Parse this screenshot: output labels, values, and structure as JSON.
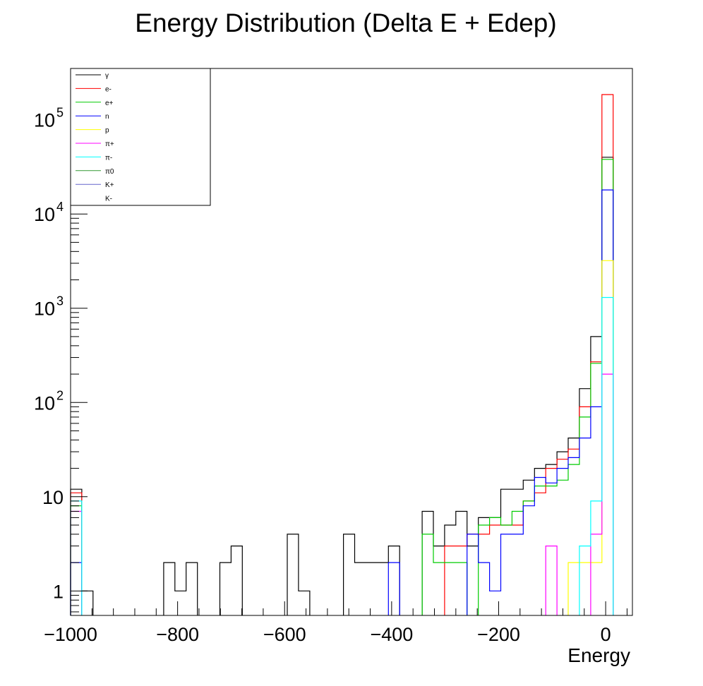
{
  "chart_data": {
    "type": "step-histogram",
    "title": "Energy Distribution (Delta E + Edep)",
    "xlabel": "Energy",
    "ylabel": "",
    "xlim": [
      -1000,
      50
    ],
    "ylim": [
      0.55,
      350000
    ],
    "log_y": true,
    "bin_width": 21,
    "x_ticks": [
      {
        "value": -1000,
        "label": "−1000"
      },
      {
        "value": -800,
        "label": "−800"
      },
      {
        "value": -600,
        "label": "−600"
      },
      {
        "value": -400,
        "label": "−400"
      },
      {
        "value": -200,
        "label": "−200"
      },
      {
        "value": 0,
        "label": "0"
      }
    ],
    "y_ticks": [
      {
        "value": 1,
        "base": "1",
        "exp": ""
      },
      {
        "value": 10,
        "base": "10",
        "exp": ""
      },
      {
        "value": 100,
        "base": "10",
        "exp": "2"
      },
      {
        "value": 1000,
        "base": "10",
        "exp": "3"
      },
      {
        "value": 10000,
        "base": "10",
        "exp": "4"
      },
      {
        "value": 100000,
        "base": "10",
        "exp": "5"
      }
    ],
    "legend_position": "top-left",
    "series": [
      {
        "name": "γ",
        "color": "#000000",
        "bins": [
          [
            -1000,
            12
          ],
          [
            -979,
            1
          ],
          [
            -826,
            2
          ],
          [
            -805,
            1
          ],
          [
            -784,
            2
          ],
          [
            -721,
            2
          ],
          [
            -700,
            3
          ],
          [
            -595,
            4
          ],
          [
            -574,
            1
          ],
          [
            -490,
            4
          ],
          [
            -469,
            2
          ],
          [
            -448,
            2
          ],
          [
            -427,
            2
          ],
          [
            -406,
            3
          ],
          [
            -343,
            7
          ],
          [
            -322,
            3
          ],
          [
            -301,
            5
          ],
          [
            -280,
            7
          ],
          [
            -259,
            3
          ],
          [
            -238,
            6
          ],
          [
            -217,
            6
          ],
          [
            -196,
            12
          ],
          [
            -175,
            12
          ],
          [
            -154,
            15
          ],
          [
            -133,
            20
          ],
          [
            -112,
            22
          ],
          [
            -91,
            30
          ],
          [
            -70,
            42
          ],
          [
            -49,
            140
          ],
          [
            -28,
            500
          ],
          [
            -7,
            40000
          ]
        ]
      },
      {
        "name": "e-",
        "color": "#ff0000",
        "bins": [
          [
            -1000,
            11
          ],
          [
            -301,
            3
          ],
          [
            -280,
            3
          ],
          [
            -259,
            4
          ],
          [
            -238,
            4
          ],
          [
            -217,
            5
          ],
          [
            -196,
            5
          ],
          [
            -175,
            5
          ],
          [
            -154,
            9
          ],
          [
            -133,
            11
          ],
          [
            -112,
            20
          ],
          [
            -91,
            25
          ],
          [
            -70,
            32
          ],
          [
            -49,
            90
          ],
          [
            -28,
            270
          ],
          [
            -7,
            185000
          ]
        ]
      },
      {
        "name": "e+",
        "color": "#00cc00",
        "bins": [
          [
            -1000,
            8
          ],
          [
            -343,
            4
          ],
          [
            -322,
            2
          ],
          [
            -301,
            2
          ],
          [
            -280,
            2
          ],
          [
            -238,
            5
          ],
          [
            -217,
            6
          ],
          [
            -196,
            5
          ],
          [
            -175,
            7
          ],
          [
            -154,
            9
          ],
          [
            -133,
            13
          ],
          [
            -112,
            13
          ],
          [
            -91,
            15
          ],
          [
            -70,
            22
          ],
          [
            -49,
            70
          ],
          [
            -28,
            260
          ],
          [
            -7,
            38000
          ]
        ]
      },
      {
        "name": "n",
        "color": "#0000ff",
        "bins": [
          [
            -1000,
            2
          ],
          [
            -406,
            2
          ],
          [
            -259,
            4
          ],
          [
            -238,
            2
          ],
          [
            -217,
            1
          ],
          [
            -196,
            4
          ],
          [
            -175,
            4
          ],
          [
            -154,
            8
          ],
          [
            -133,
            16
          ],
          [
            -112,
            14
          ],
          [
            -91,
            20
          ],
          [
            -70,
            26
          ],
          [
            -49,
            42
          ],
          [
            -28,
            90
          ],
          [
            -7,
            18000
          ]
        ]
      },
      {
        "name": "p",
        "color": "#ffff00",
        "bins": [
          [
            -70,
            2
          ],
          [
            -49,
            2
          ],
          [
            -28,
            2
          ],
          [
            -7,
            3200
          ]
        ]
      },
      {
        "name": "π+",
        "color": "#ff00ff",
        "bins": [
          [
            -1000,
            7
          ],
          [
            -112,
            3
          ],
          [
            -28,
            4
          ],
          [
            -7,
            200
          ]
        ]
      },
      {
        "name": "π-",
        "color": "#00ffff",
        "bins": [
          [
            -1000,
            9
          ],
          [
            -49,
            3
          ],
          [
            -28,
            9
          ],
          [
            -7,
            1300
          ]
        ]
      },
      {
        "name": "π0",
        "color": "#339933",
        "bins": []
      },
      {
        "name": "K+",
        "color": "#6666cc",
        "bins": []
      },
      {
        "name": "K-",
        "color": "#ffffff",
        "bins": []
      }
    ]
  }
}
